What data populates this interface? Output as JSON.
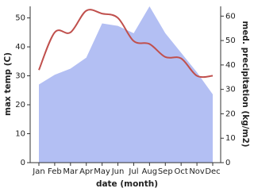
{
  "chart_data": {
    "type": "line-area",
    "x_label": "date (month)",
    "y_label": "max temp (C)",
    "y2_label": "med. precipitation (kg/m2)",
    "categories": [
      "Jan",
      "Feb",
      "Mar",
      "Apr",
      "May",
      "Jun",
      "Jul",
      "Aug",
      "Sep",
      "Oct",
      "Nov",
      "Dec"
    ],
    "series": [
      {
        "name": "med. precipitation",
        "kind": "area",
        "axis": "y2",
        "color": "#b3bff3",
        "values": [
          32,
          36,
          38.5,
          43,
          57,
          56,
          53,
          64,
          53,
          45,
          37,
          28
        ]
      },
      {
        "name": "max temp",
        "kind": "line",
        "axis": "y",
        "color": "#c0504d",
        "values": [
          32,
          45,
          45,
          52.5,
          51.5,
          50,
          42,
          41,
          36.5,
          36,
          30,
          30
        ]
      }
    ],
    "ylim": [
      0,
      54
    ],
    "yticks": [
      0,
      10,
      20,
      30,
      40,
      50
    ],
    "y2lim": [
      0,
      64
    ],
    "y2ticks": [
      0,
      10,
      20,
      30,
      40,
      50,
      60
    ]
  }
}
